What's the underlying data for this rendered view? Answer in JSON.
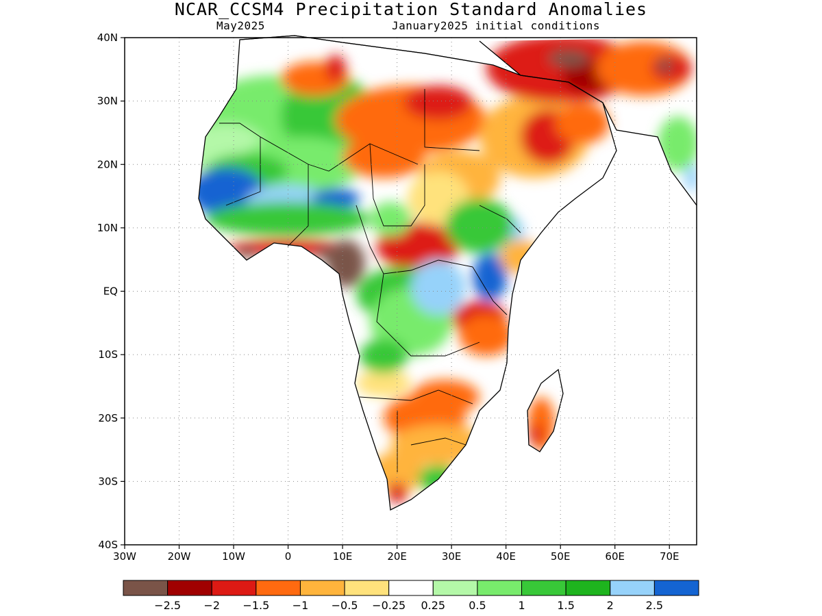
{
  "title": "NCAR_CCSM4 Precipitation Standard Anomalies",
  "subtitle_left": "May2025",
  "subtitle_right": "January2025 initial conditions",
  "map": {
    "lon_range": [
      -30,
      75
    ],
    "lat_range": [
      -40,
      40
    ],
    "gridlines": true,
    "y_ticks": [
      {
        "lat": 40,
        "label": "40N"
      },
      {
        "lat": 30,
        "label": "30N"
      },
      {
        "lat": 20,
        "label": "20N"
      },
      {
        "lat": 10,
        "label": "10N"
      },
      {
        "lat": 0,
        "label": "EQ"
      },
      {
        "lat": -10,
        "label": "10S"
      },
      {
        "lat": -20,
        "label": "20S"
      },
      {
        "lat": -30,
        "label": "30S"
      },
      {
        "lat": -40,
        "label": "40S"
      }
    ],
    "x_ticks": [
      {
        "lon": -30,
        "label": "30W"
      },
      {
        "lon": -20,
        "label": "20W"
      },
      {
        "lon": -10,
        "label": "10W"
      },
      {
        "lon": 0,
        "label": "0"
      },
      {
        "lon": 10,
        "label": "10E"
      },
      {
        "lon": 20,
        "label": "20E"
      },
      {
        "lon": 30,
        "label": "30E"
      },
      {
        "lon": 40,
        "label": "40E"
      },
      {
        "lon": 50,
        "label": "50E"
      },
      {
        "lon": 60,
        "label": "60E"
      },
      {
        "lon": 70,
        "label": "70E"
      }
    ]
  },
  "colorbar": {
    "colors": [
      "#7a5448",
      "#a00000",
      "#dd1a14",
      "#ff6a10",
      "#ffb43c",
      "#ffe27c",
      "#ffffff",
      "#b4f8a8",
      "#78eb6c",
      "#38c838",
      "#1eb41e",
      "#96d2fa",
      "#1464d2"
    ],
    "labels": [
      "-2.5",
      "-2",
      "-1.5",
      "-1",
      "-0.5",
      "-0.25",
      "0.25",
      "0.5",
      "1",
      "1.5",
      "2",
      "2.5"
    ]
  },
  "anomaly_regions": [
    {
      "lon": 5,
      "lat": 33,
      "level": -1.5
    },
    {
      "lon": 10,
      "lat": 35,
      "level": -2
    },
    {
      "lon": -5,
      "lat": 27,
      "level": 1.5
    },
    {
      "lon": -13,
      "lat": 15,
      "level": 2.5
    },
    {
      "lon": 9,
      "lat": 15,
      "level": 2.5
    },
    {
      "lon": 15,
      "lat": 25,
      "level": -1
    },
    {
      "lon": 25,
      "lat": 25,
      "level": -1
    },
    {
      "lon": 26,
      "lat": 8,
      "level": -2.5
    },
    {
      "lon": 3,
      "lat": 7,
      "level": -2
    },
    {
      "lon": 10,
      "lat": 5,
      "level": -2.5
    },
    {
      "lon": 37,
      "lat": 3,
      "level": 2.5
    },
    {
      "lon": 42,
      "lat": 23,
      "level": -1.5
    },
    {
      "lon": 52,
      "lat": 35,
      "level": -2.5
    },
    {
      "lon": 65,
      "lat": 33,
      "level": -1.5
    },
    {
      "lon": 32,
      "lat": -5,
      "level": -1.5
    },
    {
      "lon": 25,
      "lat": -20,
      "level": -1
    },
    {
      "lon": 45,
      "lat": -22,
      "level": -1.5
    },
    {
      "lon": 20,
      "lat": 0,
      "level": 1.5
    },
    {
      "lon": 24,
      "lat": -5,
      "level": 1.5
    }
  ]
}
